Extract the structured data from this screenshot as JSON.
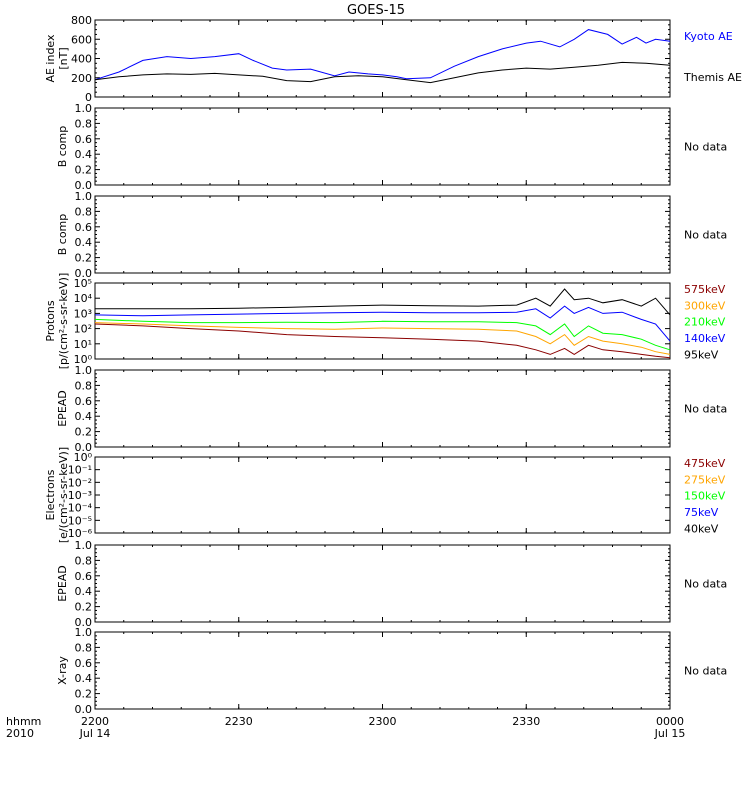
{
  "title": "GOES-15",
  "x_axis": {
    "prefix_top": "hhmm",
    "prefix_bottom": "2010",
    "ticks": [
      {
        "value": 0,
        "top": "2200",
        "bottom": "Jul 14"
      },
      {
        "value": 30,
        "top": "2230",
        "bottom": ""
      },
      {
        "value": 60,
        "top": "2300",
        "bottom": ""
      },
      {
        "value": 90,
        "top": "2330",
        "bottom": ""
      },
      {
        "value": 120,
        "top": "0000",
        "bottom": "Jul 15"
      }
    ],
    "range": [
      0,
      120
    ]
  },
  "chart_data": [
    {
      "id": "ae",
      "type": "line",
      "ylabel": [
        "AE index",
        "[nT]"
      ],
      "ylim": [
        0,
        800
      ],
      "yticks": [
        "0",
        "200",
        "400",
        "600",
        "800"
      ],
      "series": [
        {
          "name": "Kyoto AE",
          "color": "#0000ff",
          "x": [
            0,
            5,
            10,
            15,
            20,
            25,
            30,
            33,
            37,
            40,
            45,
            50,
            53,
            57,
            60,
            63,
            65,
            70,
            75,
            80,
            85,
            90,
            93,
            97,
            100,
            103,
            107,
            110,
            113,
            115,
            117,
            120
          ],
          "y": [
            180,
            260,
            380,
            420,
            400,
            420,
            450,
            380,
            300,
            280,
            290,
            220,
            260,
            240,
            230,
            210,
            190,
            200,
            320,
            420,
            500,
            560,
            580,
            520,
            600,
            700,
            650,
            550,
            620,
            560,
            600,
            580
          ]
        },
        {
          "name": "Themis AE",
          "color": "#000000",
          "x": [
            0,
            5,
            10,
            15,
            20,
            25,
            30,
            35,
            40,
            45,
            50,
            55,
            60,
            65,
            70,
            75,
            80,
            85,
            90,
            95,
            100,
            105,
            110,
            115,
            120
          ],
          "y": [
            180,
            210,
            230,
            240,
            235,
            245,
            230,
            215,
            170,
            160,
            210,
            220,
            210,
            180,
            150,
            200,
            250,
            280,
            300,
            290,
            310,
            330,
            360,
            350,
            330
          ]
        }
      ]
    },
    {
      "id": "bcomp1",
      "type": "line",
      "ylabel": [
        "B comp"
      ],
      "ylim": [
        0,
        1
      ],
      "yticks": [
        "0.0",
        "0.2",
        "0.4",
        "0.6",
        "0.8",
        "1.0"
      ],
      "no_data": "No data",
      "series": []
    },
    {
      "id": "bcomp2",
      "type": "line",
      "ylabel": [
        "B comp"
      ],
      "ylim": [
        0,
        1
      ],
      "yticks": [
        "0.0",
        "0.2",
        "0.4",
        "0.6",
        "0.8",
        "1.0"
      ],
      "no_data": "No data",
      "series": []
    },
    {
      "id": "protons",
      "type": "line",
      "log": true,
      "ylabel": [
        "Protons",
        "[p/(cm²-s-sr-keV)]"
      ],
      "ylim": [
        1,
        100000
      ],
      "yticks": [
        "10⁰",
        "10¹",
        "10²",
        "10³",
        "10⁴",
        "10⁵"
      ],
      "series": [
        {
          "name": "575keV",
          "color": "#8b0000",
          "x": [
            0,
            10,
            20,
            30,
            40,
            50,
            60,
            70,
            80,
            88,
            92,
            95,
            98,
            100,
            103,
            106,
            110,
            114,
            117,
            120
          ],
          "y": [
            200,
            150,
            100,
            70,
            40,
            30,
            25,
            20,
            15,
            8,
            4,
            2,
            5,
            2,
            8,
            4,
            3,
            2,
            1.5,
            1.2
          ]
        },
        {
          "name": "300keV",
          "color": "#ffa500",
          "x": [
            0,
            10,
            20,
            30,
            40,
            50,
            60,
            70,
            80,
            88,
            92,
            95,
            98,
            100,
            103,
            106,
            110,
            114,
            117,
            120
          ],
          "y": [
            250,
            200,
            150,
            120,
            100,
            90,
            110,
            100,
            90,
            70,
            30,
            10,
            40,
            8,
            30,
            15,
            10,
            6,
            3,
            2
          ]
        },
        {
          "name": "210keV",
          "color": "#00ff00",
          "x": [
            0,
            10,
            20,
            30,
            40,
            50,
            60,
            70,
            80,
            88,
            92,
            95,
            98,
            100,
            103,
            106,
            110,
            114,
            117,
            120
          ],
          "y": [
            400,
            300,
            250,
            250,
            260,
            250,
            300,
            280,
            280,
            250,
            150,
            40,
            200,
            30,
            150,
            50,
            40,
            20,
            8,
            4
          ]
        },
        {
          "name": "140keV",
          "color": "#0000ff",
          "x": [
            0,
            10,
            20,
            30,
            40,
            50,
            60,
            70,
            80,
            88,
            92,
            95,
            98,
            100,
            103,
            106,
            110,
            114,
            117,
            120
          ],
          "y": [
            800,
            700,
            800,
            900,
            1000,
            1100,
            1200,
            1100,
            1100,
            1200,
            2000,
            500,
            3000,
            1000,
            2500,
            1000,
            1200,
            400,
            200,
            15
          ]
        },
        {
          "name": "95keV",
          "color": "#000000",
          "x": [
            0,
            10,
            20,
            30,
            40,
            50,
            60,
            70,
            80,
            88,
            92,
            95,
            98,
            100,
            103,
            106,
            110,
            114,
            117,
            120
          ],
          "y": [
            2000,
            2000,
            2000,
            2200,
            2500,
            3000,
            3500,
            3200,
            3000,
            3500,
            10000,
            3000,
            40000,
            8000,
            10000,
            5000,
            8000,
            3000,
            10000,
            800
          ]
        }
      ]
    },
    {
      "id": "epead1",
      "type": "line",
      "ylabel": [
        "EPEAD"
      ],
      "ylim": [
        0,
        1
      ],
      "yticks": [
        "0.0",
        "0.2",
        "0.4",
        "0.6",
        "0.8",
        "1.0"
      ],
      "no_data": "No data",
      "series": []
    },
    {
      "id": "electrons",
      "type": "line",
      "log": true,
      "ylabel": [
        "Electrons",
        "[e/(cm²-s-sr-keV)]"
      ],
      "ylim": [
        1e-06,
        1
      ],
      "yticks": [
        "10⁻⁶",
        "10⁻⁵",
        "10⁻⁴",
        "10⁻³",
        "10⁻²",
        "10⁻¹",
        "10⁰"
      ],
      "legend": [
        {
          "name": "475keV",
          "color": "#8b0000"
        },
        {
          "name": "275keV",
          "color": "#ffa500"
        },
        {
          "name": "150keV",
          "color": "#00ff00"
        },
        {
          "name": "75keV",
          "color": "#0000ff"
        },
        {
          "name": "40keV",
          "color": "#000000"
        }
      ],
      "series": []
    },
    {
      "id": "epead2",
      "type": "line",
      "ylabel": [
        "EPEAD"
      ],
      "ylim": [
        0,
        1
      ],
      "yticks": [
        "0.0",
        "0.2",
        "0.4",
        "0.6",
        "0.8",
        "1.0"
      ],
      "no_data": "No data",
      "series": []
    },
    {
      "id": "xray",
      "type": "line",
      "ylabel": [
        "X-ray"
      ],
      "ylim": [
        0,
        1
      ],
      "yticks": [
        "0.0",
        "0.2",
        "0.4",
        "0.6",
        "0.8",
        "1.0"
      ],
      "no_data": "No data",
      "series": []
    }
  ]
}
